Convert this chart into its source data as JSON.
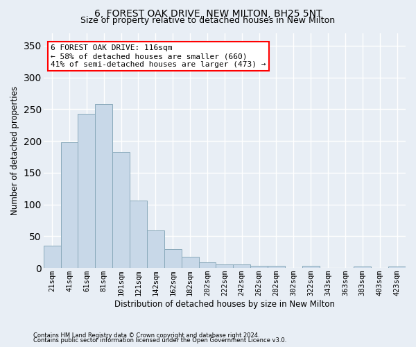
{
  "title": "6, FOREST OAK DRIVE, NEW MILTON, BH25 5NT",
  "subtitle": "Size of property relative to detached houses in New Milton",
  "xlabel": "Distribution of detached houses by size in New Milton",
  "ylabel": "Number of detached properties",
  "footer1": "Contains HM Land Registry data © Crown copyright and database right 2024.",
  "footer2": "Contains public sector information licensed under the Open Government Licence v3.0.",
  "categories": [
    "21sqm",
    "41sqm",
    "61sqm",
    "81sqm",
    "101sqm",
    "121sqm",
    "142sqm",
    "162sqm",
    "182sqm",
    "202sqm",
    "222sqm",
    "242sqm",
    "262sqm",
    "282sqm",
    "302sqm",
    "322sqm",
    "343sqm",
    "363sqm",
    "383sqm",
    "403sqm",
    "423sqm"
  ],
  "values": [
    35,
    198,
    243,
    258,
    183,
    106,
    59,
    30,
    18,
    9,
    6,
    6,
    3,
    3,
    0,
    3,
    0,
    0,
    2,
    0,
    2
  ],
  "bar_color": "#c8d8e8",
  "bar_edge_color": "#8aaabb",
  "annotation_text1": "6 FOREST OAK DRIVE: 116sqm",
  "annotation_text2": "← 58% of detached houses are smaller (660)",
  "annotation_text3": "41% of semi-detached houses are larger (473) →",
  "ylim": [
    0,
    370
  ],
  "xlim": [
    -0.5,
    20.5
  ],
  "bg_color": "#e8eef5",
  "plot_bg_color": "#e8eef5",
  "grid_color": "#ffffff",
  "title_fontsize": 10,
  "subtitle_fontsize": 9,
  "tick_fontsize": 7.5,
  "ylabel_fontsize": 8.5,
  "xlabel_fontsize": 8.5,
  "footer_fontsize": 6,
  "ann_fontsize": 8
}
